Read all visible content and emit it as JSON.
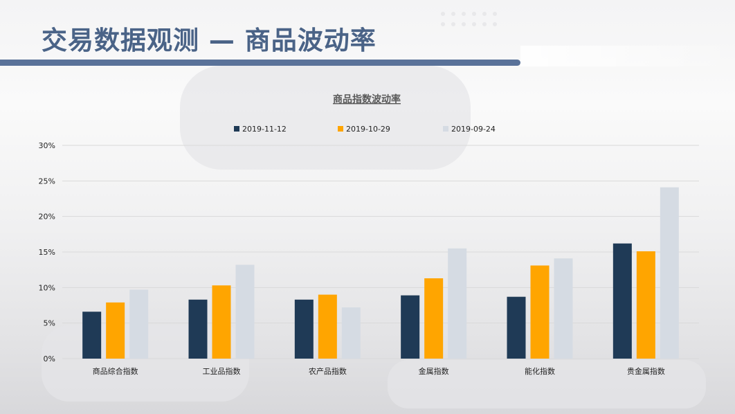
{
  "page": {
    "title": "交易数据观测 — 商品波动率"
  },
  "colors": {
    "title": "#4a6387",
    "title_bar": "#5a7299",
    "series": [
      "#1f3a56",
      "#ffa500",
      "#d5dbe3"
    ],
    "grid": "#d9d9d9",
    "axis_text": "#222222",
    "chart_title": "#595959"
  },
  "chart_data": {
    "type": "bar",
    "title": "商品指数波动率",
    "xlabel": "",
    "ylabel": "",
    "categories": [
      "商品综合指数",
      "工业品指数",
      "农产品指数",
      "金属指数",
      "能化指数",
      "贵金属指数"
    ],
    "series": [
      {
        "name": "2019-11-12",
        "values": [
          6.6,
          8.3,
          8.3,
          8.9,
          8.7,
          16.2
        ]
      },
      {
        "name": "2019-10-29",
        "values": [
          7.9,
          10.3,
          9.0,
          11.3,
          13.1,
          15.1
        ]
      },
      {
        "name": "2019-09-24",
        "values": [
          9.7,
          13.2,
          7.2,
          15.5,
          14.1,
          24.1
        ]
      }
    ],
    "yticks": [
      "0%",
      "5%",
      "10%",
      "15%",
      "20%",
      "25%",
      "30%"
    ],
    "ylim": [
      0,
      30
    ],
    "grid": true,
    "legend_position": "top"
  }
}
